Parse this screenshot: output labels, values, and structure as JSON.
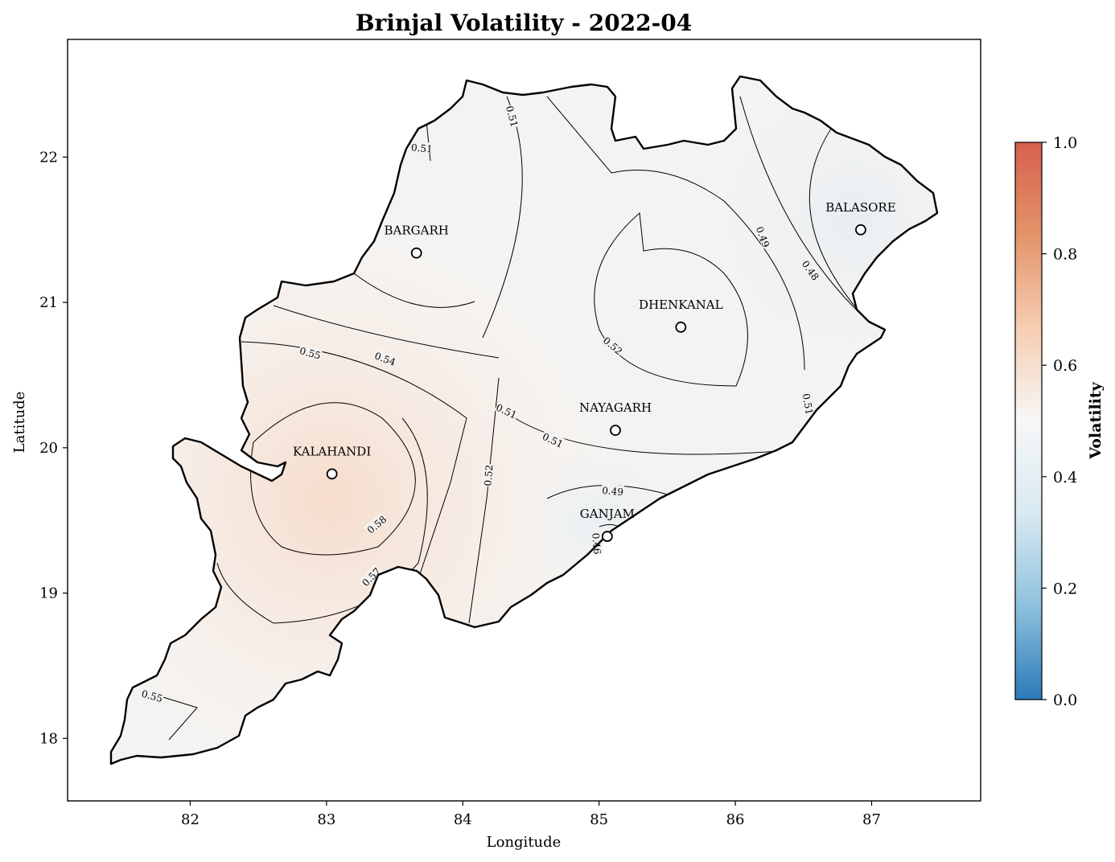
{
  "chart_data": {
    "type": "contour-map",
    "title": "Brinjal Volatility - 2022-04",
    "xlabel": "Longitude",
    "ylabel": "Latitude",
    "xlim": [
      81.1,
      87.8
    ],
    "ylim": [
      17.57,
      22.81
    ],
    "x_ticks": [
      "82",
      "83",
      "84",
      "85",
      "86",
      "87"
    ],
    "y_ticks": [
      "18",
      "19",
      "20",
      "21",
      "22"
    ],
    "colorbar": {
      "label": "Volatility",
      "min": 0.0,
      "max": 1.0,
      "ticks": [
        "0.0",
        "0.2",
        "0.4",
        "0.6",
        "0.8",
        "1.0"
      ],
      "colors": [
        "#2a7ab8",
        "#8ec1dd",
        "#d8e9f1",
        "#f7f7f7",
        "#f6cdb1",
        "#e3946a",
        "#d6604d"
      ]
    },
    "districts": [
      {
        "name": "BARGARH",
        "lon": 83.66,
        "lat": 21.34
      },
      {
        "name": "BALASORE",
        "lon": 86.92,
        "lat": 21.5
      },
      {
        "name": "DHENKANAL",
        "lon": 85.6,
        "lat": 20.83
      },
      {
        "name": "NAYAGARH",
        "lon": 85.12,
        "lat": 20.12
      },
      {
        "name": "KALAHANDI",
        "lon": 83.04,
        "lat": 19.82
      },
      {
        "name": "GANJAM",
        "lon": 85.06,
        "lat": 19.39
      }
    ],
    "contour_labels": [
      {
        "text": "0.51",
        "lon": 84.36,
        "lat": 22.28,
        "rot": 75
      },
      {
        "text": "0.51",
        "lon": 83.7,
        "lat": 22.06,
        "rot": 5
      },
      {
        "text": "0.49",
        "lon": 86.2,
        "lat": 21.45,
        "rot": 70
      },
      {
        "text": "0.48",
        "lon": 86.55,
        "lat": 21.22,
        "rot": 55
      },
      {
        "text": "0.52",
        "lon": 85.1,
        "lat": 20.7,
        "rot": 40
      },
      {
        "text": "0.55",
        "lon": 82.88,
        "lat": 20.65,
        "rot": 15
      },
      {
        "text": "0.54",
        "lon": 83.43,
        "lat": 20.61,
        "rot": 20
      },
      {
        "text": "0.51",
        "lon": 86.53,
        "lat": 20.3,
        "rot": 80
      },
      {
        "text": "0.51",
        "lon": 84.32,
        "lat": 20.25,
        "rot": 25
      },
      {
        "text": "0.51",
        "lon": 84.66,
        "lat": 20.05,
        "rot": 25
      },
      {
        "text": "0.52",
        "lon": 84.19,
        "lat": 19.81,
        "rot": -85
      },
      {
        "text": "0.49",
        "lon": 85.1,
        "lat": 19.7,
        "rot": 5
      },
      {
        "text": "0.58",
        "lon": 83.37,
        "lat": 19.47,
        "rot": -40
      },
      {
        "text": "0.46",
        "lon": 84.98,
        "lat": 19.34,
        "rot": 85
      },
      {
        "text": "0.57",
        "lon": 83.33,
        "lat": 19.11,
        "rot": -45
      },
      {
        "text": "0.55",
        "lon": 81.72,
        "lat": 18.29,
        "rot": 15
      }
    ]
  }
}
